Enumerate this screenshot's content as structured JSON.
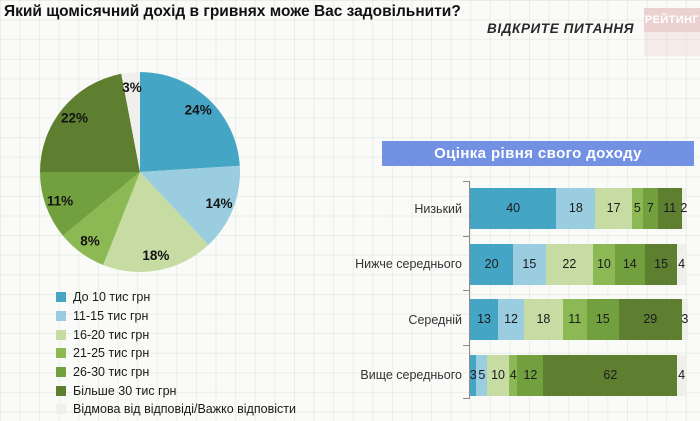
{
  "header": {
    "title": "Який щомісячний дохід в гривнях може Вас задовільнити?",
    "note": "ВІДКРИТЕ ПИТАННЯ",
    "logo_text": "РЕЙТИНГ"
  },
  "banner": {
    "title": "Оцінка рівня свого доходу"
  },
  "palette": {
    "series_colors": [
      "#45A5C5",
      "#9BCDE0",
      "#C7DCA3",
      "#8DB954",
      "#73A03F",
      "#5E7E30",
      "#EFEFEC"
    ],
    "banner_bg": "#7291E2",
    "banner_text": "#FFFFFF",
    "logo_bg": "#EBD2D0",
    "logo_fade_bg": "rgba(235,210,208,0.35)",
    "logo_text_color": "#FFFFFF",
    "axis_color": "#8B8B8B"
  },
  "legend": {
    "items": [
      "До 10 тис грн",
      "11-15 тис грн",
      "16-20 тис грн",
      "21-25 тис грн",
      "26-30 тис грн",
      "Більше 30 тис грн",
      "Відмова від відповіді/Важко відповісти"
    ]
  },
  "chart_data": [
    {
      "type": "pie",
      "title": "Який щомісячний дохід в гривнях може Вас задовільнити?",
      "labels": [
        "До 10 тис грн",
        "11-15 тис грн",
        "16-20 тис грн",
        "21-25 тис грн",
        "26-30 тис грн",
        "Більше 30 тис грн",
        "Відмова від відповіді/Важко відповісти"
      ],
      "values": [
        24,
        14,
        18,
        8,
        11,
        22,
        3
      ],
      "value_labels": [
        "24%",
        "14%",
        "18%",
        "8%",
        "11%",
        "22%",
        "3%"
      ],
      "start_angle_deg": 0,
      "direction": "clockwise",
      "legend_position": "bottom-left"
    },
    {
      "type": "bar",
      "subtype": "horizontal-stacked",
      "title": "Оцінка рівня свого доходу",
      "categories": [
        "Низький",
        "Нижче середнього",
        "Середній",
        "Вище середнього"
      ],
      "series": [
        {
          "name": "До 10 тис грн",
          "values": [
            40,
            20,
            13,
            3
          ]
        },
        {
          "name": "11-15 тис грн",
          "values": [
            18,
            15,
            12,
            5
          ]
        },
        {
          "name": "16-20 тис грн",
          "values": [
            17,
            22,
            18,
            10
          ]
        },
        {
          "name": "21-25 тис грн",
          "values": [
            5,
            10,
            11,
            4
          ]
        },
        {
          "name": "26-30 тис грн",
          "values": [
            7,
            14,
            15,
            12
          ]
        },
        {
          "name": "Більше 30 тис грн",
          "values": [
            11,
            15,
            29,
            62
          ]
        },
        {
          "name": "Відмова від відповіді/Важко відповісти",
          "values": [
            2,
            4,
            3,
            4
          ]
        }
      ],
      "xlim": [
        0,
        100
      ],
      "value_labels_shown": true,
      "grid": false
    }
  ]
}
